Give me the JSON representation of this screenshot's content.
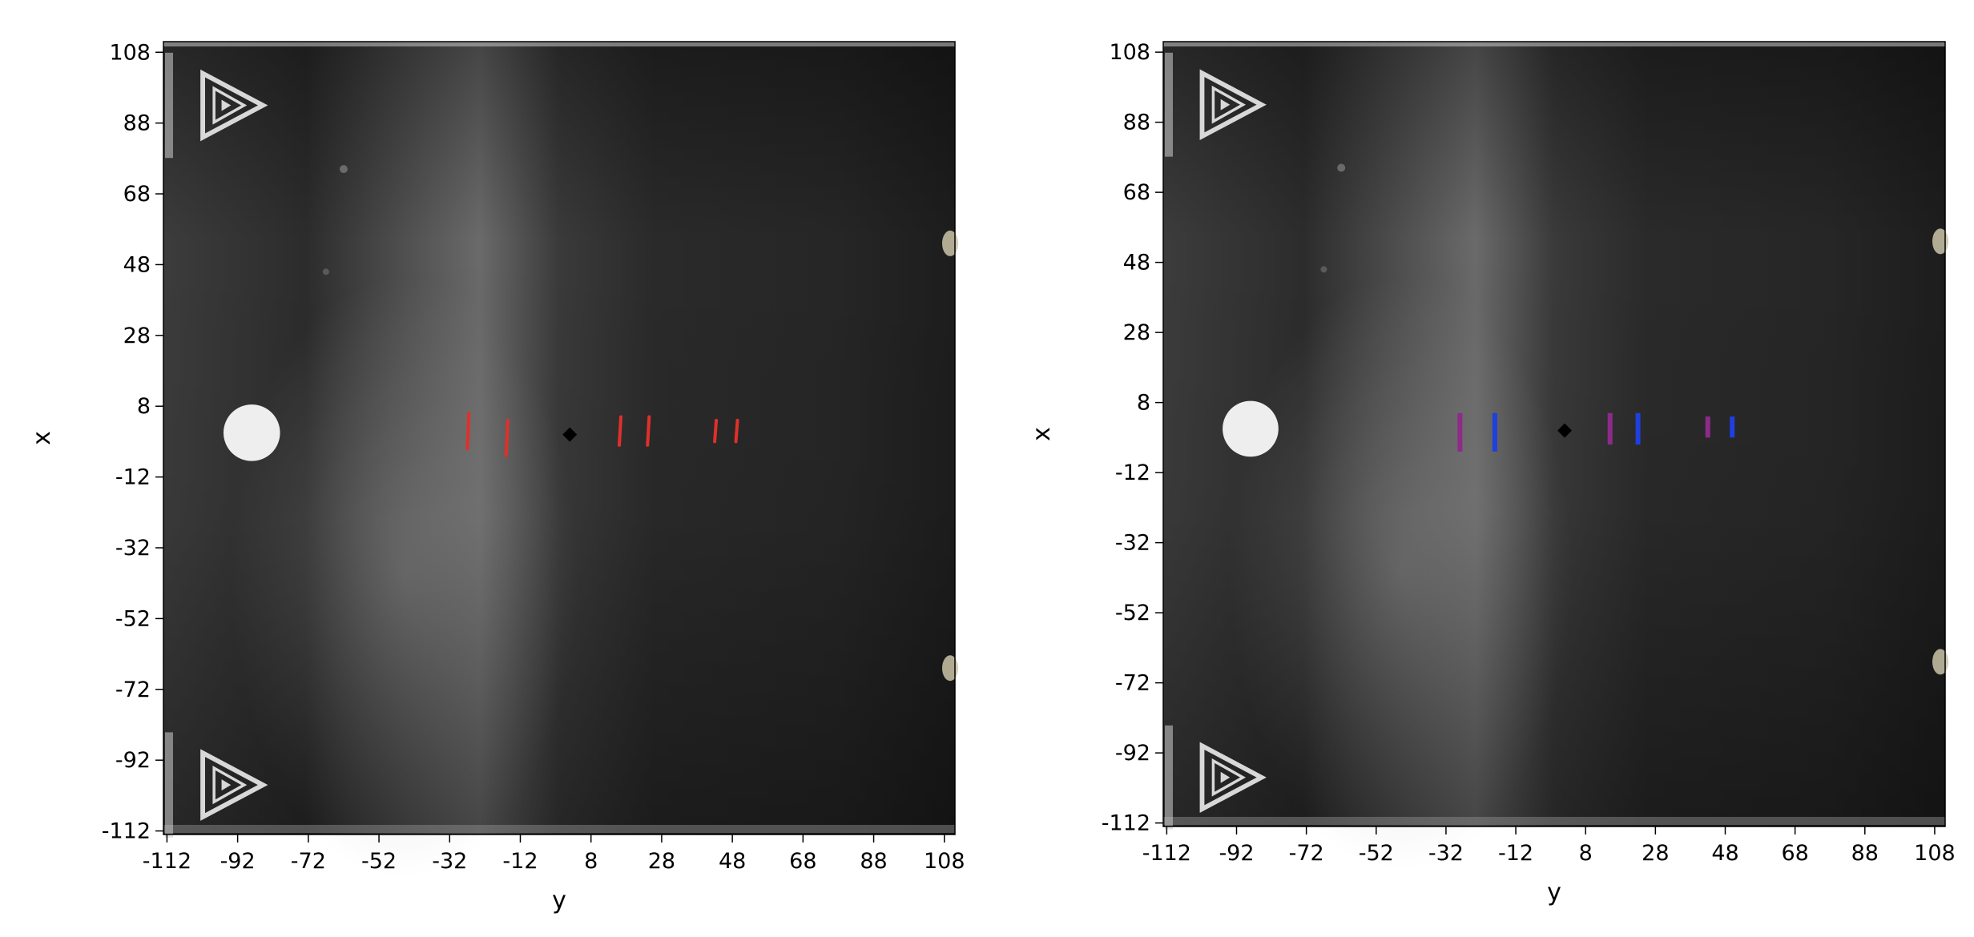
{
  "chart_data": [
    {
      "type": "image",
      "panel": "left",
      "xlabel": "y",
      "ylabel": "x",
      "xlim": [
        -113,
        111
      ],
      "ylim": [
        111,
        -113
      ],
      "xticks": [
        -112,
        -92,
        -72,
        -52,
        -32,
        -12,
        8,
        28,
        48,
        68,
        88,
        108
      ],
      "yticks": [
        -112,
        -92,
        -72,
        -52,
        -32,
        -12,
        8,
        28,
        48,
        68,
        88,
        108
      ],
      "center_marker": {
        "y": 2,
        "x": 0
      },
      "edge_marks": [
        {
          "y": -27,
          "x_from": -4,
          "x_to": 6
        },
        {
          "y": -16,
          "x_from": -6,
          "x_to": 4
        },
        {
          "y": 16,
          "x_from": -3,
          "x_to": 5
        },
        {
          "y": 24,
          "x_from": -3,
          "x_to": 5
        },
        {
          "y": 43,
          "x_from": -2,
          "x_to": 4
        },
        {
          "y": 49,
          "x_from": -2,
          "x_to": 4
        }
      ],
      "joint_regions": []
    },
    {
      "type": "image",
      "panel": "right",
      "xlabel": "y",
      "ylabel": "x",
      "xlim": [
        -113,
        111
      ],
      "ylim": [
        111,
        -113
      ],
      "xticks": [
        -112,
        -92,
        -72,
        -52,
        -32,
        -12,
        8,
        28,
        48,
        68,
        88,
        108
      ],
      "yticks": [
        -112,
        -92,
        -72,
        -52,
        -32,
        -12,
        8,
        28,
        48,
        68,
        88,
        108
      ],
      "center_marker": {
        "y": 2,
        "x": 0
      },
      "edge_marks": [],
      "joint_regions": [
        {
          "y_start": -28,
          "y_end": -18,
          "x_from": -6,
          "x_to": 5
        },
        {
          "y_start": 15,
          "y_end": 23,
          "x_from": -4,
          "x_to": 5
        },
        {
          "y_start": 43,
          "y_end": 50,
          "x_from": -2,
          "x_to": 4
        }
      ]
    }
  ],
  "colors": {
    "edge_mark": "#e0302a",
    "joint_fill": "#2f8a1f",
    "joint_left_edge": "#8e2a8a",
    "joint_right_edge": "#1f3fe0",
    "center_marker": "#000000",
    "bone": "#eeeeee",
    "background_dark": "#262626",
    "background_light": "#6a6a6a"
  },
  "icons": [
    "calibration-triangle-icon"
  ]
}
